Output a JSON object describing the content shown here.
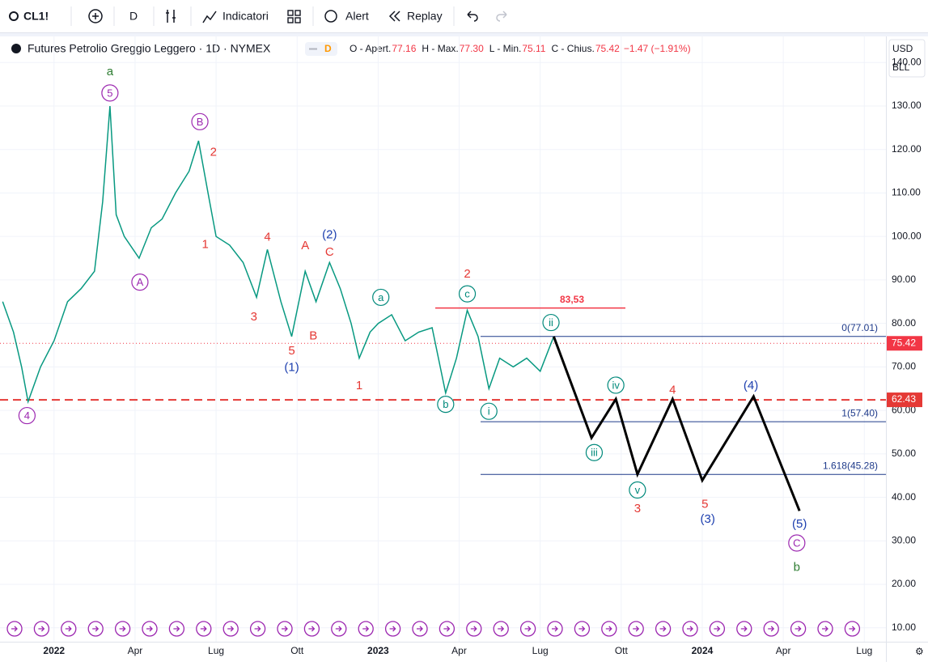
{
  "toolbar": {
    "symbol": "CL1!",
    "interval": "D",
    "indicators": "Indicatori",
    "alert": "Alert",
    "replay": "Replay"
  },
  "header": {
    "title": "Futures Petrolio Greggio Leggero · 1D · NYMEX",
    "badge": "D",
    "ohlc": [
      {
        "label": "O - Apert.",
        "value": "77.16"
      },
      {
        "label": "H - Max.",
        "value": "77.30"
      },
      {
        "label": "L - Min.",
        "value": "75.11"
      },
      {
        "label": "C - Chius.",
        "value": "75.42"
      }
    ],
    "change": "−1.47 (−1.91%)"
  },
  "price_scale": {
    "currency": "USD",
    "unit": "BLL",
    "ylim": [
      6.8,
      146
    ],
    "ticks": [
      {
        "value": 140,
        "label": "140.00"
      },
      {
        "value": 130,
        "label": "130.00"
      },
      {
        "value": 120,
        "label": "120.00"
      },
      {
        "value": 110,
        "label": "110.00"
      },
      {
        "value": 100,
        "label": "100.00"
      },
      {
        "value": 90,
        "label": "90.00"
      },
      {
        "value": 80,
        "label": "80.00"
      },
      {
        "value": 70,
        "label": "70.00"
      },
      {
        "value": 60,
        "label": "60.00"
      },
      {
        "value": 50,
        "label": "50.00"
      },
      {
        "value": 40,
        "label": "40.00"
      },
      {
        "value": 30,
        "label": "30.00"
      },
      {
        "value": 20,
        "label": "20.00"
      },
      {
        "value": 10,
        "label": "10.00"
      }
    ],
    "last": {
      "value": 75.42,
      "label": "75.42"
    },
    "level": {
      "value": 62.43,
      "label": "62.43"
    }
  },
  "time_scale": {
    "xlim": [
      -2,
      30.8
    ],
    "ticks": [
      {
        "value": 0,
        "label": "2022"
      },
      {
        "value": 3,
        "label": "Apr"
      },
      {
        "value": 6,
        "label": "Lug"
      },
      {
        "value": 9,
        "label": "Ott"
      },
      {
        "value": 12,
        "label": "2023"
      },
      {
        "value": 15,
        "label": "Apr"
      },
      {
        "value": 18,
        "label": "Lug"
      },
      {
        "value": 21,
        "label": "Ott"
      },
      {
        "value": 24,
        "label": "2024"
      },
      {
        "value": 27,
        "label": "Apr"
      },
      {
        "value": 30,
        "label": "Lug"
      }
    ]
  },
  "price": {
    "color": "#089981",
    "x": [
      -1.9,
      -1.5,
      -1.2,
      -0.96,
      -0.5,
      0,
      0.5,
      1,
      1.5,
      1.8,
      2.07,
      2.3,
      2.6,
      3.15,
      3.6,
      4,
      4.5,
      5,
      5.35,
      5.7,
      6,
      6.5,
      7,
      7.5,
      7.9,
      8.4,
      8.8,
      9.3,
      9.7,
      10.2,
      10.6,
      11,
      11.3,
      11.7,
      12,
      12.5,
      13,
      13.5,
      14,
      14.5,
      14.9,
      15.3,
      15.7,
      16.1,
      16.5,
      17,
      17.5,
      18,
      18.5
    ],
    "values": [
      85,
      78,
      70,
      62,
      70,
      76,
      85,
      88,
      92,
      108,
      130,
      105,
      100,
      95,
      102,
      104,
      110,
      115,
      122,
      110,
      100,
      98,
      94,
      86,
      97,
      85,
      77,
      92,
      85,
      94,
      88,
      80,
      72,
      78,
      80,
      82,
      76,
      78,
      79,
      64,
      72,
      83,
      77,
      65,
      72,
      70,
      72,
      69,
      77
    ]
  },
  "resistance": {
    "value": 83.53,
    "label": "83,53",
    "color": "#f23645"
  },
  "fib": {
    "color": "#1e3a8a",
    "levels": [
      {
        "value": 77.01,
        "label": "0(77.01)"
      },
      {
        "value": 57.4,
        "label": "1(57.40)"
      },
      {
        "value": 45.28,
        "label": "1.618(45.28)"
      }
    ]
  },
  "projection": {
    "color": "#000000",
    "x": [
      18.5,
      19.9,
      20.8,
      21.6,
      22.9,
      24,
      25.9,
      27.6
    ],
    "values": [
      77,
      53.7,
      62.6,
      45.3,
      62.6,
      43.9,
      63.2,
      36.9
    ]
  },
  "waves": [
    {
      "text": "a",
      "t": 2.07,
      "price": 138,
      "color": "#2e7d32",
      "circled": false
    },
    {
      "text": "5",
      "t": 2.07,
      "price": 133,
      "color": "#9c27b0",
      "circled": true
    },
    {
      "text": "B",
      "t": 5.4,
      "price": 126.4,
      "color": "#9c27b0",
      "circled": true
    },
    {
      "text": "2",
      "t": 5.9,
      "price": 119.5,
      "color": "#e53935",
      "circled": false
    },
    {
      "text": "A",
      "t": 3.18,
      "price": 89.5,
      "color": "#9c27b0",
      "circled": true
    },
    {
      "text": "1",
      "t": 5.6,
      "price": 98.3,
      "color": "#e53935",
      "circled": false
    },
    {
      "text": "4",
      "t": 7.9,
      "price": 99.9,
      "color": "#e53935",
      "circled": false
    },
    {
      "text": "3",
      "t": 7.4,
      "price": 81.6,
      "color": "#e53935",
      "circled": false
    },
    {
      "text": "A",
      "t": 9.3,
      "price": 98,
      "color": "#e53935",
      "circled": false
    },
    {
      "text": "(2)",
      "t": 10.2,
      "price": 100.5,
      "color": "#1e40af",
      "circled": false
    },
    {
      "text": "C",
      "t": 10.2,
      "price": 96.5,
      "color": "#e53935",
      "circled": false
    },
    {
      "text": "5",
      "t": 8.8,
      "price": 73.8,
      "color": "#e53935",
      "circled": false
    },
    {
      "text": "(1)",
      "t": 8.8,
      "price": 70,
      "color": "#1e40af",
      "circled": false
    },
    {
      "text": "B",
      "t": 9.6,
      "price": 77.2,
      "color": "#e53935",
      "circled": false
    },
    {
      "text": "1",
      "t": 11.3,
      "price": 65.8,
      "color": "#e53935",
      "circled": false
    },
    {
      "text": "4",
      "t": -1,
      "price": 58.8,
      "color": "#9c27b0",
      "circled": true
    },
    {
      "text": "a",
      "t": 12.1,
      "price": 86,
      "color": "#00897b",
      "circled": true
    },
    {
      "text": "2",
      "t": 15.3,
      "price": 91.5,
      "color": "#e53935",
      "circled": false
    },
    {
      "text": "c",
      "t": 15.3,
      "price": 86.8,
      "color": "#00897b",
      "circled": true
    },
    {
      "text": "ii",
      "t": 18.4,
      "price": 80.2,
      "color": "#00897b",
      "circled": true
    },
    {
      "text": "b",
      "t": 14.5,
      "price": 61.4,
      "color": "#00897b",
      "circled": true
    },
    {
      "text": "i",
      "t": 16.1,
      "price": 59.8,
      "color": "#00897b",
      "circled": true
    },
    {
      "text": "iv",
      "t": 20.8,
      "price": 65.8,
      "color": "#00897b",
      "circled": true
    },
    {
      "text": "iii",
      "t": 20,
      "price": 50.3,
      "color": "#00897b",
      "circled": true
    },
    {
      "text": "4",
      "t": 22.9,
      "price": 64.8,
      "color": "#e53935",
      "circled": false
    },
    {
      "text": "(4)",
      "t": 25.8,
      "price": 65.8,
      "color": "#1e40af",
      "circled": false
    },
    {
      "text": "v",
      "t": 21.6,
      "price": 41.7,
      "color": "#00897b",
      "circled": true
    },
    {
      "text": "3",
      "t": 21.6,
      "price": 37.5,
      "color": "#e53935",
      "circled": false
    },
    {
      "text": "5",
      "t": 24.1,
      "price": 38.5,
      "color": "#e53935",
      "circled": false
    },
    {
      "text": "(3)",
      "t": 24.2,
      "price": 35.1,
      "color": "#1e40af",
      "circled": false
    },
    {
      "text": "(5)",
      "t": 27.6,
      "price": 34,
      "color": "#1e40af",
      "circled": false
    },
    {
      "text": "C",
      "t": 27.5,
      "price": 29.5,
      "color": "#9c27b0",
      "circled": true
    },
    {
      "text": "b",
      "t": 27.5,
      "price": 24,
      "color": "#2e7d32",
      "circled": false
    }
  ]
}
